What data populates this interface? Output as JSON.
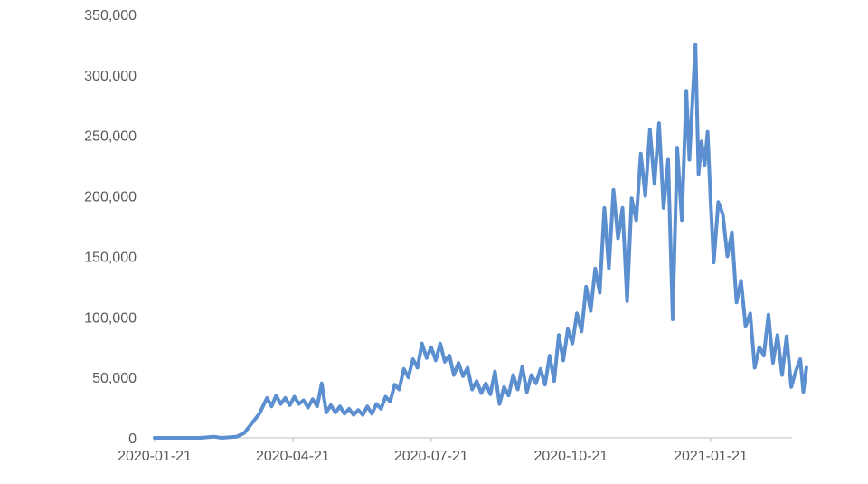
{
  "chart_data": {
    "type": "line",
    "title": "",
    "xlabel": "",
    "ylabel": "",
    "ylim": [
      0,
      350000
    ],
    "y_ticks": [
      0,
      50000,
      100000,
      150000,
      200000,
      250000,
      300000,
      350000
    ],
    "y_tick_labels": [
      "0",
      "50,000",
      "100,000",
      "150,000",
      "200,000",
      "250,000",
      "300,000",
      "350,000"
    ],
    "x_ticks": [
      "2020-01-21",
      "2020-04-21",
      "2020-07-21",
      "2020-10-21",
      "2021-01-21"
    ],
    "grid": false,
    "legend": "none",
    "color": "#5b8fcf",
    "series": [
      {
        "values": [
          [
            "2020-01-21",
            0
          ],
          [
            "2020-02-20",
            0
          ],
          [
            "2020-02-29",
            1000
          ],
          [
            "2020-03-05",
            0
          ],
          [
            "2020-03-15",
            1000
          ],
          [
            "2020-03-20",
            4000
          ],
          [
            "2020-03-25",
            12000
          ],
          [
            "2020-03-30",
            20000
          ],
          [
            "2020-04-04",
            33000
          ],
          [
            "2020-04-07",
            26000
          ],
          [
            "2020-04-10",
            35000
          ],
          [
            "2020-04-13",
            28000
          ],
          [
            "2020-04-16",
            33000
          ],
          [
            "2020-04-19",
            27000
          ],
          [
            "2020-04-22",
            34000
          ],
          [
            "2020-04-25",
            28000
          ],
          [
            "2020-04-28",
            31000
          ],
          [
            "2020-05-01",
            25000
          ],
          [
            "2020-05-04",
            32000
          ],
          [
            "2020-05-07",
            26000
          ],
          [
            "2020-05-10",
            45000
          ],
          [
            "2020-05-13",
            21000
          ],
          [
            "2020-05-16",
            27000
          ],
          [
            "2020-05-19",
            21000
          ],
          [
            "2020-05-22",
            26000
          ],
          [
            "2020-05-25",
            20000
          ],
          [
            "2020-05-28",
            24000
          ],
          [
            "2020-05-31",
            19000
          ],
          [
            "2020-06-03",
            23000
          ],
          [
            "2020-06-06",
            19000
          ],
          [
            "2020-06-09",
            26000
          ],
          [
            "2020-06-12",
            20000
          ],
          [
            "2020-06-15",
            28000
          ],
          [
            "2020-06-18",
            24000
          ],
          [
            "2020-06-21",
            34000
          ],
          [
            "2020-06-24",
            30000
          ],
          [
            "2020-06-27",
            44000
          ],
          [
            "2020-06-30",
            40000
          ],
          [
            "2020-07-03",
            57000
          ],
          [
            "2020-07-06",
            50000
          ],
          [
            "2020-07-09",
            65000
          ],
          [
            "2020-07-12",
            58000
          ],
          [
            "2020-07-15",
            78000
          ],
          [
            "2020-07-18",
            66000
          ],
          [
            "2020-07-21",
            75000
          ],
          [
            "2020-07-24",
            64000
          ],
          [
            "2020-07-27",
            78000
          ],
          [
            "2020-07-30",
            63000
          ],
          [
            "2020-08-02",
            68000
          ],
          [
            "2020-08-05",
            52000
          ],
          [
            "2020-08-08",
            62000
          ],
          [
            "2020-08-11",
            51000
          ],
          [
            "2020-08-14",
            58000
          ],
          [
            "2020-08-17",
            40000
          ],
          [
            "2020-08-20",
            47000
          ],
          [
            "2020-08-23",
            37000
          ],
          [
            "2020-08-26",
            45000
          ],
          [
            "2020-08-29",
            36000
          ],
          [
            "2020-09-01",
            55000
          ],
          [
            "2020-09-04",
            28000
          ],
          [
            "2020-09-07",
            42000
          ],
          [
            "2020-09-10",
            35000
          ],
          [
            "2020-09-13",
            52000
          ],
          [
            "2020-09-16",
            40000
          ],
          [
            "2020-09-19",
            59000
          ],
          [
            "2020-09-22",
            38000
          ],
          [
            "2020-09-25",
            52000
          ],
          [
            "2020-09-28",
            45000
          ],
          [
            "2020-10-01",
            57000
          ],
          [
            "2020-10-04",
            44000
          ],
          [
            "2020-10-07",
            68000
          ],
          [
            "2020-10-10",
            47000
          ],
          [
            "2020-10-13",
            85000
          ],
          [
            "2020-10-16",
            64000
          ],
          [
            "2020-10-19",
            90000
          ],
          [
            "2020-10-22",
            78000
          ],
          [
            "2020-10-25",
            103000
          ],
          [
            "2020-10-28",
            88000
          ],
          [
            "2020-10-31",
            125000
          ],
          [
            "2020-11-03",
            105000
          ],
          [
            "2020-11-06",
            140000
          ],
          [
            "2020-11-09",
            120000
          ],
          [
            "2020-11-12",
            190000
          ],
          [
            "2020-11-15",
            140000
          ],
          [
            "2020-11-18",
            205000
          ],
          [
            "2020-11-21",
            165000
          ],
          [
            "2020-11-24",
            190000
          ],
          [
            "2020-11-27",
            113000
          ],
          [
            "2020-11-30",
            198000
          ],
          [
            "2020-12-03",
            180000
          ],
          [
            "2020-12-06",
            235000
          ],
          [
            "2020-12-09",
            200000
          ],
          [
            "2020-12-12",
            255000
          ],
          [
            "2020-12-15",
            210000
          ],
          [
            "2020-12-18",
            260000
          ],
          [
            "2020-12-21",
            190000
          ],
          [
            "2020-12-24",
            230000
          ],
          [
            "2020-12-27",
            98000
          ],
          [
            "2020-12-30",
            240000
          ],
          [
            "2021-01-02",
            180000
          ],
          [
            "2021-01-05",
            287000
          ],
          [
            "2021-01-07",
            230000
          ],
          [
            "2021-01-09",
            278000
          ],
          [
            "2021-01-11",
            325000
          ],
          [
            "2021-01-13",
            218000
          ],
          [
            "2021-01-15",
            245000
          ],
          [
            "2021-01-17",
            225000
          ],
          [
            "2021-01-19",
            253000
          ],
          [
            "2021-01-21",
            195000
          ],
          [
            "2021-01-23",
            145000
          ],
          [
            "2021-01-26",
            195000
          ],
          [
            "2021-01-29",
            185000
          ],
          [
            "2021-02-01",
            150000
          ],
          [
            "2021-02-04",
            170000
          ],
          [
            "2021-02-07",
            112000
          ],
          [
            "2021-02-10",
            130000
          ],
          [
            "2021-02-13",
            92000
          ],
          [
            "2021-02-16",
            103000
          ],
          [
            "2021-02-19",
            58000
          ],
          [
            "2021-02-22",
            75000
          ],
          [
            "2021-02-25",
            68000
          ],
          [
            "2021-02-28",
            102000
          ],
          [
            "2021-03-03",
            62000
          ],
          [
            "2021-03-06",
            85000
          ],
          [
            "2021-03-09",
            52000
          ],
          [
            "2021-03-12",
            84000
          ],
          [
            "2021-03-15",
            42000
          ],
          [
            "2021-03-18",
            55000
          ],
          [
            "2021-03-21",
            65000
          ],
          [
            "2021-03-23",
            38000
          ],
          [
            "2021-03-25",
            58000
          ]
        ]
      }
    ]
  }
}
